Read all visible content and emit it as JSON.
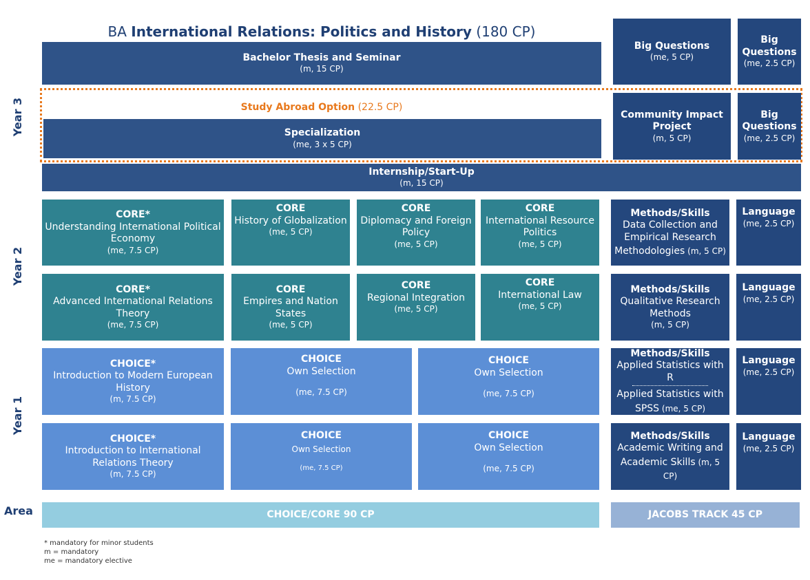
{
  "title": {
    "prefix": "BA ",
    "main": "International Relations: Politics and History",
    "suffix": " (180 CP)"
  },
  "years": {
    "y3": "Year 3",
    "y2": "Year 2",
    "y1": "Year 1",
    "area": "Area"
  },
  "year3": {
    "thesis": {
      "title": "Bachelor Thesis and Seminar",
      "cp": "(m, 15 CP)"
    },
    "study_abroad": {
      "label": "Study Abroad Option",
      "cp": " (22.5 CP)"
    },
    "specialization": {
      "title": "Specialization",
      "cp": "(me, 3 x 5 CP)"
    },
    "internship": {
      "title": "Internship/Start-Up",
      "cp": "(m, 15 CP)"
    },
    "big_questions_1": {
      "title": "Big Questions",
      "cp": "(me, 5 CP)"
    },
    "big_questions_2": {
      "title1": "Big",
      "title2": "Questions",
      "cp": "(me, 2.5 CP)"
    },
    "community": {
      "title1": "Community Impact",
      "title2": "Project",
      "cp": "(m, 5 CP)"
    },
    "big_questions_3": {
      "title1": "Big",
      "title2": "Questions",
      "cp": "(me, 2.5 CP)"
    }
  },
  "year2": {
    "row1": [
      {
        "head": "CORE*",
        "l1": "Understanding International Political",
        "l2": "Economy",
        "cp": "(me, 7.5 CP)"
      },
      {
        "head": "CORE",
        "l1": "History of Globalization",
        "cp": "(me, 5 CP)"
      },
      {
        "head": "CORE",
        "l1": "Diplomacy and Foreign",
        "l2": "Policy",
        "cp": "(me, 5 CP)"
      },
      {
        "head": "CORE",
        "l1": "International Resource",
        "l2": "Politics",
        "cp": "(me, 5 CP)"
      }
    ],
    "row2": [
      {
        "head": "CORE*",
        "l1": "Advanced International Relations",
        "l2": "Theory",
        "cp": "(me, 7.5 CP)"
      },
      {
        "head": "CORE",
        "l1": "Empires and Nation",
        "l2": "States",
        "cp": "(me, 5 CP)"
      },
      {
        "head": "CORE",
        "l1": "Regional Integration",
        "cp": "(me, 5 CP)"
      },
      {
        "head": "CORE",
        "l1": "International Law",
        "cp": "(me, 5 CP)"
      }
    ],
    "methods1": {
      "head": "Methods/Skills",
      "l1": "Data Collection and",
      "l2": "Empirical Research",
      "l3": "Methodologies",
      "cp": " (m, 5 CP)"
    },
    "methods2": {
      "head": "Methods/Skills",
      "l1": "Qualitative Research",
      "l2": "Methods",
      "cp": "(m, 5 CP)"
    },
    "lang1": {
      "head": "Language",
      "cp": "(me, 2.5 CP)"
    },
    "lang2": {
      "head": "Language",
      "cp": "(me, 2.5 CP)"
    }
  },
  "year1": {
    "row1": [
      {
        "head": "CHOICE*",
        "l1": "Introduction to Modern European",
        "l2": "History",
        "cp": "(m, 7.5 CP)"
      },
      {
        "head": "CHOICE",
        "l1": "Own Selection",
        "cp": "(me, 7.5 CP)"
      },
      {
        "head": "CHOICE",
        "l1": "Own Selection",
        "cp": "(me, 7.5 CP)"
      }
    ],
    "row2": [
      {
        "head": "CHOICE*",
        "l1": "Introduction to International",
        "l2": "Relations Theory",
        "cp": "(m, 7.5 CP)"
      },
      {
        "head": "CHOICE",
        "l1": "Own Selection",
        "cp": "(me, 7.5 CP)"
      },
      {
        "head": "CHOICE",
        "l1": "Own Selection",
        "cp": "(me, 7.5 CP)"
      }
    ],
    "methods1": {
      "head": "Methods/Skills",
      "l1": "Applied Statistics with R",
      "l2": "Applied Statistics with",
      "l3": "SPSS",
      "cp": " (me, 5 CP)"
    },
    "methods2": {
      "head": "Methods/Skills",
      "l1": "Academic Writing and",
      "l2": "Academic Skills",
      "cp": " (m, 5 CP)"
    },
    "lang1": {
      "head": "Language",
      "cp": "(me, 2.5 CP)"
    },
    "lang2": {
      "head": "Language",
      "cp": "(me, 2.5 CP)"
    }
  },
  "area": {
    "choice_core": "CHOICE/CORE 90 CP",
    "jacobs": "JACOBS TRACK 45 CP"
  },
  "legend": {
    "l1": "* mandatory for minor students",
    "l2": "m = mandatory",
    "l3": "me = mandatory elective"
  },
  "colors": {
    "navy": "#2f5388",
    "teal": "#2f8290",
    "blue": "#5c8fd6",
    "light_blue": "#94cde0",
    "periwinkle": "#97b2d6",
    "orange": "#e8791d"
  }
}
